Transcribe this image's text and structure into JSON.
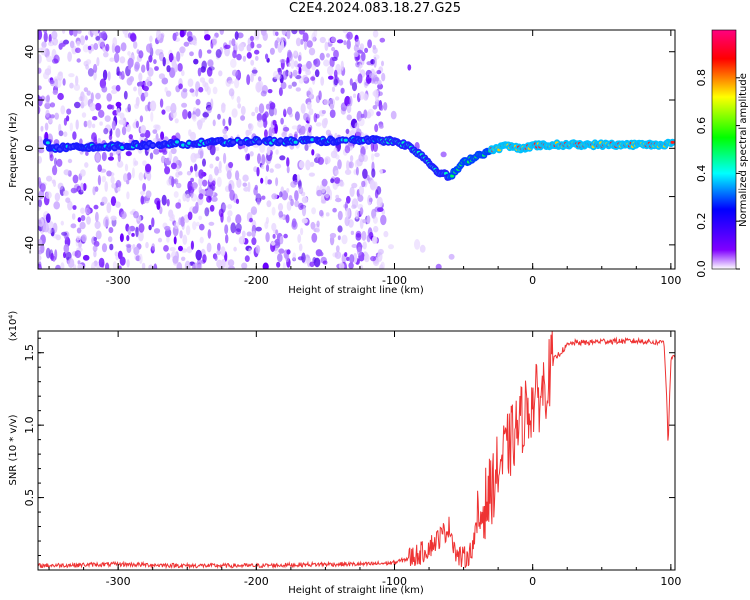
{
  "title": "C2E4.2024.083.18.27.G25",
  "chart_data": [
    {
      "type": "heatmap",
      "title": "C2E4.2024.083.18.27.G25",
      "xlabel": "Height of straight line (km)",
      "ylabel": "Frequency (Hz)",
      "xlim": [
        -358,
        103
      ],
      "ylim": [
        -50,
        49
      ],
      "xticks": [
        -300,
        -200,
        -100,
        0,
        100
      ],
      "yticks": [
        40,
        20,
        0,
        -20,
        -40
      ],
      "colorbar": {
        "label": "Normalized spectral amplitude",
        "range": [
          0,
          1
        ],
        "ticks": [
          0.0,
          0.2,
          0.4,
          0.6,
          0.8
        ],
        "colors": [
          "#ffffff",
          "#8000ff",
          "#0000ff",
          "#00ffff",
          "#00ff00",
          "#ffff00",
          "#ff0000",
          "#ff0080"
        ]
      },
      "ridge": [
        [
          -350,
          0
        ],
        [
          -300,
          1
        ],
        [
          -250,
          2
        ],
        [
          -200,
          3
        ],
        [
          -150,
          3
        ],
        [
          -120,
          3.5
        ],
        [
          -100,
          3
        ],
        [
          -90,
          1
        ],
        [
          -80,
          -3
        ],
        [
          -70,
          -9
        ],
        [
          -60,
          -12
        ],
        [
          -50,
          -6
        ],
        [
          -40,
          -3
        ],
        [
          -30,
          -1
        ],
        [
          -20,
          1
        ],
        [
          -10,
          0
        ],
        [
          0,
          1
        ],
        [
          20,
          1.5
        ],
        [
          60,
          1.5
        ],
        [
          90,
          1.5
        ],
        [
          100,
          2
        ]
      ]
    },
    {
      "type": "line",
      "xlabel": "Height of straight line (km)",
      "ylabel": "SNR (10 * v/v)",
      "y_multiplier": "(x10⁴)",
      "xlim": [
        -358,
        103
      ],
      "ylim": [
        0,
        1.65
      ],
      "xticks": [
        -300,
        -200,
        -100,
        0,
        100
      ],
      "yticks": [
        0.5,
        1.0,
        1.5
      ],
      "series": [
        {
          "color": "#ee3333",
          "x": [
            -358,
            -300,
            -250,
            -200,
            -150,
            -120,
            -100,
            -90,
            -80,
            -70,
            -60,
            -55,
            -50,
            -45,
            -40,
            -35,
            -30,
            -25,
            -20,
            -15,
            -10,
            -5,
            0,
            5,
            10,
            15,
            20,
            25,
            30,
            40,
            50,
            60,
            70,
            80,
            90,
            95,
            97,
            98,
            100,
            103
          ],
          "y": [
            0.03,
            0.04,
            0.03,
            0.03,
            0.04,
            0.04,
            0.05,
            0.08,
            0.12,
            0.2,
            0.3,
            0.1,
            0.08,
            0.12,
            0.3,
            0.45,
            0.55,
            0.7,
            0.8,
            0.9,
            1.0,
            1.1,
            1.15,
            1.2,
            1.3,
            1.45,
            1.5,
            1.55,
            1.57,
            1.57,
            1.58,
            1.58,
            1.58,
            1.58,
            1.57,
            1.58,
            1.2,
            0.85,
            1.45,
            1.48
          ]
        }
      ]
    }
  ]
}
